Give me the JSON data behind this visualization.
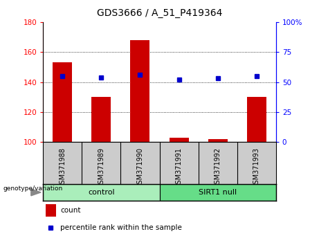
{
  "title": "GDS3666 / A_51_P419364",
  "categories": [
    "GSM371988",
    "GSM371989",
    "GSM371990",
    "GSM371991",
    "GSM371992",
    "GSM371993"
  ],
  "bar_values": [
    153,
    130,
    168,
    103,
    102,
    130
  ],
  "bar_bottom": 100,
  "percentile_values": [
    55,
    54,
    56,
    52,
    53,
    55
  ],
  "bar_color": "#cc0000",
  "dot_color": "#0000cc",
  "ylim_left": [
    100,
    180
  ],
  "ylim_right": [
    0,
    100
  ],
  "yticks_left": [
    100,
    120,
    140,
    160,
    180
  ],
  "yticks_right": [
    0,
    25,
    50,
    75,
    100
  ],
  "right_tick_labels": [
    "0",
    "25",
    "50",
    "75",
    "100%"
  ],
  "group_labels": [
    "control",
    "SIRT1 null"
  ],
  "control_color": "#aaeebb",
  "sirt1_color": "#66dd88",
  "tick_area_bg": "#cccccc",
  "legend_count": "count",
  "legend_pct": "percentile rank within the sample",
  "bar_width": 0.5,
  "grid_lines": [
    120,
    140,
    160
  ]
}
